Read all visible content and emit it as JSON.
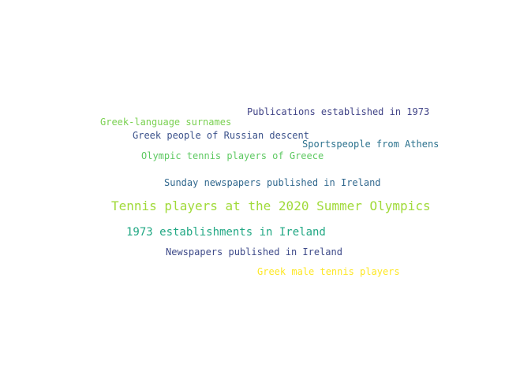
{
  "word_cloud": {
    "words": [
      {
        "text": "Publications established in 1973",
        "color": "#414487"
      },
      {
        "text": "Greek-language surnames",
        "color": "#7ad151"
      },
      {
        "text": "Greek people of Russian descent",
        "color": "#3b528b"
      },
      {
        "text": "Sportspeople from Athens",
        "color": "#2c728e"
      },
      {
        "text": "Olympic tennis players of Greece",
        "color": "#5ec962"
      },
      {
        "text": "Sunday newspapers published in Ireland",
        "color": "#31688e"
      },
      {
        "text": "Tennis players at the 2020 Summer Olympics",
        "color": "#a0da39"
      },
      {
        "text": "1973 establishments in Ireland",
        "color": "#22a884"
      },
      {
        "text": "Newspapers published in Ireland",
        "color": "#3e4a89"
      },
      {
        "text": "Greek male tennis players",
        "color": "#fde725"
      }
    ]
  }
}
